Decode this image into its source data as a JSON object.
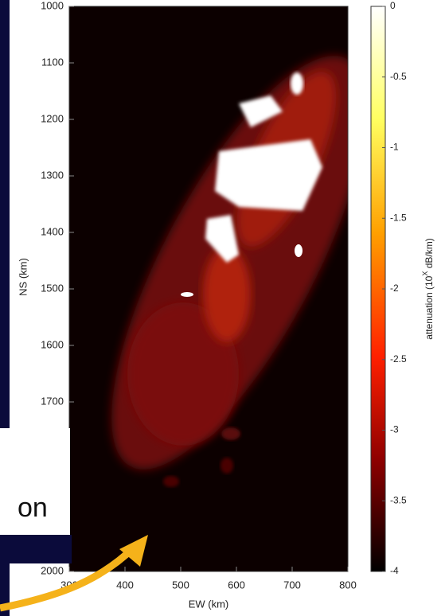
{
  "chart_data": {
    "type": "heatmap",
    "xlabel": "EW (km)",
    "ylabel": "NS (km)",
    "colorbar_label": [
      "attenuation (10",
      "X",
      " dB/km)"
    ],
    "xlim": [
      300,
      800
    ],
    "xticks": [
      300,
      400,
      500,
      600,
      700,
      800
    ],
    "ylim": [
      1000,
      2000
    ],
    "yticks": [
      1000,
      1100,
      1200,
      1300,
      1400,
      1500,
      1600,
      1700,
      2000
    ],
    "clim": [
      -4,
      0
    ],
    "cticks": [
      0,
      -0.5,
      -1,
      -1.5,
      -2,
      -2.5,
      -3,
      -3.5,
      -4
    ],
    "overlay_text": "on"
  }
}
